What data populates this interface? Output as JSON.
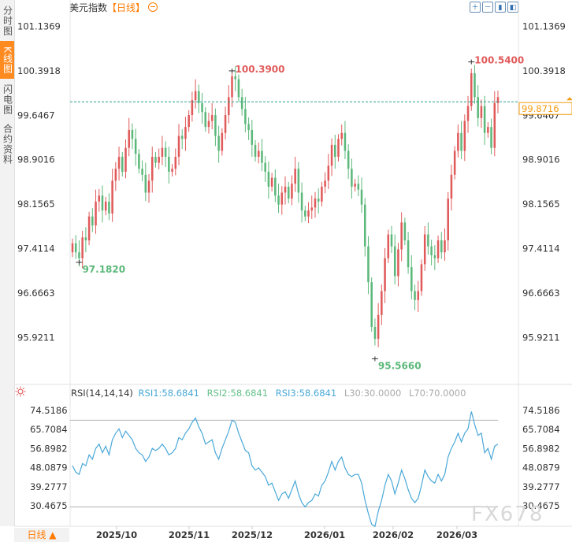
{
  "tabs": [
    {
      "label": "分时图",
      "active": false
    },
    {
      "label": "K线图",
      "active": true
    },
    {
      "label": "闪电图",
      "active": false
    },
    {
      "label": "合约资料",
      "active": false
    }
  ],
  "header": {
    "symbol": "美元指数",
    "period_tag": "【日线】",
    "toggle_icon": "circle-minus-icon"
  },
  "toolbar_icons": [
    "zoom-in-icon",
    "zoom-out-icon",
    "bar-chart-icon",
    "fullscreen-icon",
    "close-icon"
  ],
  "bottom": {
    "period_label": "日线",
    "arrow_icon": "triangle-up-icon"
  },
  "watermark": "FX678",
  "colors": {
    "up": "#e05a5a",
    "down": "#5cb87a",
    "current": "#f39c12",
    "rsi": "#4aa8d8",
    "dash": "#2a9d8f"
  },
  "rsi_legend": {
    "title": "RSI(14,14,14)",
    "rsi1": "RSI1:58.6841",
    "rsi2": "RSI2:58.6841",
    "rsi3": "RSI3:58.6841",
    "l30": "L30:30.0000",
    "l70": "L70:70.0000"
  },
  "chart_data": [
    {
      "type": "candlestick",
      "y_ticks": [
        "101.1369",
        "100.3918",
        "99.6467",
        "98.9016",
        "98.1565",
        "97.4114",
        "96.6663",
        "95.9211"
      ],
      "ylim": [
        95.4,
        101.3
      ],
      "x_ticks": [
        "2025/10",
        "2025/11",
        "2025/12",
        "2026/01",
        "2026/02",
        "2026/03"
      ],
      "current_price": "99.8716",
      "annotations": [
        {
          "label": "100.3900",
          "kind": "high",
          "value": 100.39
        },
        {
          "label": "100.5400",
          "kind": "high",
          "value": 100.54
        },
        {
          "label": "97.1820",
          "kind": "low",
          "value": 97.182
        },
        {
          "label": "95.5660",
          "kind": "low",
          "value": 95.566
        }
      ],
      "closes": [
        97.5,
        97.35,
        97.25,
        97.6,
        97.55,
        97.95,
        97.8,
        98.2,
        98.3,
        98.05,
        98.2,
        98.0,
        98.55,
        98.75,
        98.95,
        98.7,
        99.1,
        99.4,
        99.25,
        99.0,
        98.75,
        98.65,
        98.35,
        98.55,
        98.95,
        98.85,
        98.95,
        99.1,
        98.95,
        98.7,
        98.75,
        98.95,
        99.3,
        99.25,
        99.45,
        99.65,
        99.9,
        100.05,
        99.85,
        99.7,
        99.45,
        99.55,
        99.65,
        99.3,
        99.05,
        99.35,
        99.65,
        99.95,
        100.3,
        100.25,
        99.95,
        99.75,
        99.5,
        99.4,
        99.15,
        98.95,
        99.05,
        98.85,
        98.7,
        98.45,
        98.6,
        98.3,
        98.15,
        98.35,
        98.45,
        98.25,
        98.5,
        98.75,
        98.35,
        98.05,
        97.95,
        98.05,
        98.1,
        98.25,
        98.2,
        98.45,
        98.55,
        98.8,
        99.15,
        98.95,
        99.25,
        99.35,
        99.05,
        98.75,
        98.45,
        98.5,
        98.4,
        98.15,
        97.45,
        96.85,
        96.1,
        95.9,
        96.3,
        96.7,
        97.25,
        97.65,
        97.45,
        96.95,
        97.4,
        97.85,
        97.55,
        97.1,
        96.7,
        96.55,
        96.7,
        97.15,
        97.65,
        97.45,
        97.3,
        97.25,
        97.55,
        97.35,
        97.55,
        98.25,
        98.65,
        99.05,
        99.35,
        99.05,
        99.55,
        99.8,
        100.35,
        99.95,
        99.6,
        99.8,
        99.35,
        99.45,
        99.1,
        99.85,
        99.95
      ]
    },
    {
      "type": "line",
      "series": [
        {
          "name": "RSI1"
        }
      ],
      "y_ticks": [
        "74.5186",
        "65.7084",
        "56.8982",
        "48.0879",
        "39.2777",
        "30.4675"
      ],
      "ylim": [
        24.0,
        78.5
      ],
      "ref_lines": [
        30,
        70
      ],
      "values": [
        49,
        46,
        45,
        50,
        49,
        54,
        52,
        57,
        59,
        55,
        58,
        54,
        61,
        64,
        66,
        62,
        65,
        63,
        61,
        57,
        55,
        54,
        51,
        53,
        57,
        56,
        57,
        59,
        57,
        54,
        55,
        57,
        62,
        61,
        64,
        66,
        69,
        71,
        67,
        64,
        59,
        60,
        61,
        55,
        52,
        57,
        61,
        65,
        70,
        69,
        64,
        60,
        56,
        55,
        49,
        47,
        48,
        46,
        44,
        40,
        41,
        37,
        33,
        36,
        37,
        34,
        38,
        42,
        36,
        32,
        30,
        32,
        33,
        36,
        35,
        40,
        42,
        46,
        51,
        47,
        51,
        53,
        48,
        45,
        44,
        45,
        45,
        41,
        33,
        27,
        22,
        21,
        28,
        33,
        40,
        45,
        42,
        36,
        41,
        47,
        43,
        38,
        34,
        32,
        34,
        40,
        47,
        44,
        42,
        41,
        45,
        42,
        45,
        53,
        57,
        60,
        64,
        60,
        64,
        66,
        74,
        68,
        63,
        64,
        55,
        57,
        52,
        58,
        59
      ]
    }
  ]
}
